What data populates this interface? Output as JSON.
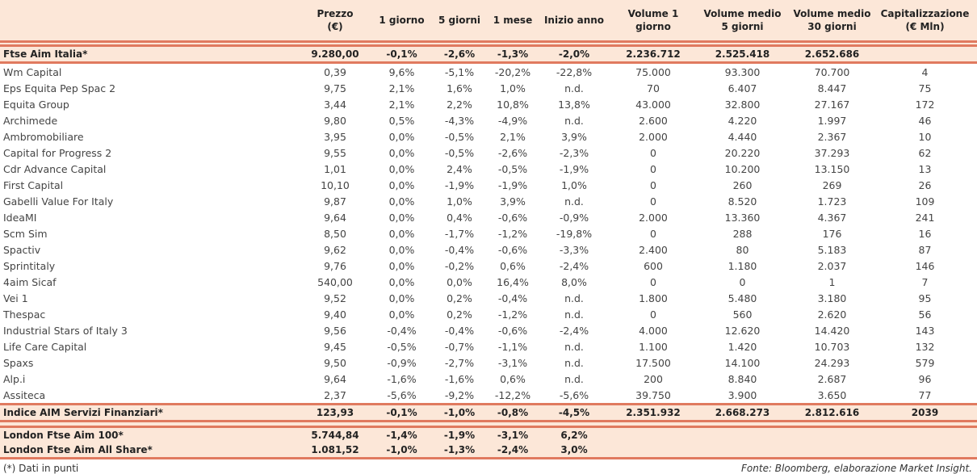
{
  "headers": [
    "",
    "Prezzo\n(€)",
    "1 giorno",
    "5 giorni",
    "1 mese",
    "Inizio anno",
    "Volume 1\ngiorno",
    "Volume medio\n5 giorni",
    "Volume medio\n30 giorni",
    "Capitalizzazione\n(€ Mln)"
  ],
  "index_row": [
    "Ftse Aim Italia*",
    "9.280,00",
    "-0,1%",
    "-2,6%",
    "-1,3%",
    "-2,0%",
    "2.236.712",
    "2.525.418",
    "2.652.686",
    ""
  ],
  "rows": [
    [
      "Wm Capital",
      "0,39",
      "9,6%",
      "-5,1%",
      "-20,2%",
      "-22,8%",
      "75.000",
      "93.300",
      "70.700",
      "4"
    ],
    [
      "Eps Equita Pep Spac 2",
      "9,75",
      "2,1%",
      "1,6%",
      "1,0%",
      "n.d.",
      "70",
      "6.407",
      "8.447",
      "75"
    ],
    [
      "Equita Group",
      "3,44",
      "2,1%",
      "2,2%",
      "10,8%",
      "13,8%",
      "43.000",
      "32.800",
      "27.167",
      "172"
    ],
    [
      "Archimede",
      "9,80",
      "0,5%",
      "-4,3%",
      "-4,9%",
      "n.d.",
      "2.600",
      "4.220",
      "1.997",
      "46"
    ],
    [
      "Ambromobiliare",
      "3,95",
      "0,0%",
      "-0,5%",
      "2,1%",
      "3,9%",
      "2.000",
      "4.440",
      "2.367",
      "10"
    ],
    [
      "Capital for Progress 2",
      "9,55",
      "0,0%",
      "-0,5%",
      "-2,6%",
      "-2,3%",
      "0",
      "20.220",
      "37.293",
      "62"
    ],
    [
      "Cdr Advance Capital",
      "1,01",
      "0,0%",
      "2,4%",
      "-0,5%",
      "-1,9%",
      "0",
      "10.200",
      "13.150",
      "13"
    ],
    [
      "First Capital",
      "10,10",
      "0,0%",
      "-1,9%",
      "-1,9%",
      "1,0%",
      "0",
      "260",
      "269",
      "26"
    ],
    [
      "Gabelli Value For Italy",
      "9,87",
      "0,0%",
      "1,0%",
      "3,9%",
      "n.d.",
      "0",
      "8.520",
      "1.723",
      "109"
    ],
    [
      "IdeaMI",
      "9,64",
      "0,0%",
      "0,4%",
      "-0,6%",
      "-0,9%",
      "2.000",
      "13.360",
      "4.367",
      "241"
    ],
    [
      "Scm Sim",
      "8,50",
      "0,0%",
      "-1,7%",
      "-1,2%",
      "-19,8%",
      "0",
      "288",
      "176",
      "16"
    ],
    [
      "Spactiv",
      "9,62",
      "0,0%",
      "-0,4%",
      "-0,6%",
      "-3,3%",
      "2.400",
      "80",
      "5.183",
      "87"
    ],
    [
      "Sprintitaly",
      "9,76",
      "0,0%",
      "-0,2%",
      "0,6%",
      "-2,4%",
      "600",
      "1.180",
      "2.037",
      "146"
    ],
    [
      "4aim Sicaf",
      "540,00",
      "0,0%",
      "0,0%",
      "16,4%",
      "8,0%",
      "0",
      "0",
      "1",
      "7"
    ],
    [
      "Vei 1",
      "9,52",
      "0,0%",
      "0,2%",
      "-0,4%",
      "n.d.",
      "1.800",
      "5.480",
      "3.180",
      "95"
    ],
    [
      "Thespac",
      "9,40",
      "0,0%",
      "0,2%",
      "-1,2%",
      "n.d.",
      "0",
      "560",
      "2.620",
      "56"
    ],
    [
      "Industrial Stars of Italy 3",
      "9,56",
      "-0,4%",
      "-0,4%",
      "-0,6%",
      "-2,4%",
      "4.000",
      "12.620",
      "14.420",
      "143"
    ],
    [
      "Life Care Capital",
      "9,45",
      "-0,5%",
      "-0,7%",
      "-1,1%",
      "n.d.",
      "1.100",
      "1.420",
      "10.703",
      "132"
    ],
    [
      "Spaxs",
      "9,50",
      "-0,9%",
      "-2,7%",
      "-3,1%",
      "n.d.",
      "17.500",
      "14.100",
      "24.293",
      "579"
    ],
    [
      "Alp.i",
      "9,64",
      "-1,6%",
      "-1,6%",
      "0,6%",
      "n.d.",
      "200",
      "8.840",
      "2.687",
      "96"
    ],
    [
      "Assiteca",
      "2,37",
      "-5,6%",
      "-9,2%",
      "-12,2%",
      "-5,6%",
      "39.750",
      "3.900",
      "3.650",
      "77"
    ]
  ],
  "sector_row": [
    "Indice AIM Servizi Finanziari*",
    "123,93",
    "-0,1%",
    "-1,0%",
    "-0,8%",
    "-4,5%",
    "2.351.932",
    "2.668.273",
    "2.812.616",
    "2039"
  ],
  "london_rows": [
    [
      "London Ftse Aim 100*",
      "5.744,84",
      "-1,4%",
      "-1,9%",
      "-3,1%",
      "6,2%",
      "",
      "",
      "",
      ""
    ],
    [
      "London Ftse Aim All Share*",
      "1.081,52",
      "-1,0%",
      "-1,3%",
      "-2,4%",
      "3,0%",
      "",
      "",
      "",
      ""
    ]
  ],
  "footer": {
    "note": "(*) Dati in punti",
    "source": "Fonte: Bloomberg, elaborazione Market Insight."
  }
}
